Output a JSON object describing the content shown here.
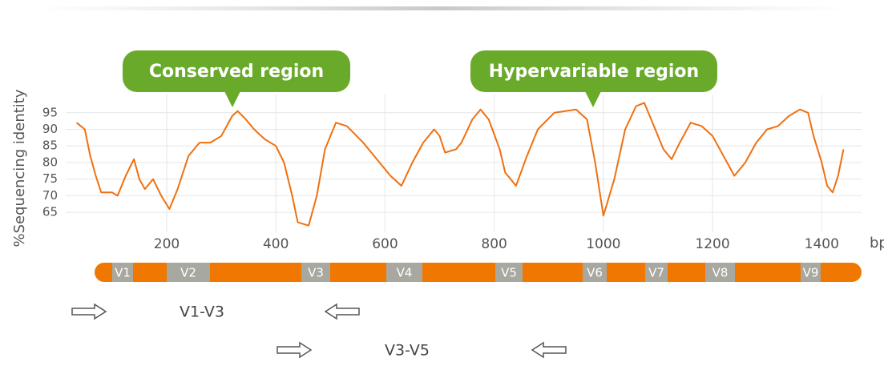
{
  "chart_data": {
    "type": "line",
    "ylabel": "%Sequencing identity",
    "xlabel": "bp",
    "annotations": [
      "Conserved region",
      "Hypervariable region"
    ],
    "x": [
      35,
      50,
      60,
      70,
      80,
      100,
      110,
      125,
      140,
      150,
      160,
      175,
      190,
      205,
      220,
      240,
      260,
      280,
      300,
      320,
      330,
      345,
      360,
      380,
      400,
      415,
      430,
      440,
      460,
      475,
      490,
      510,
      530,
      560,
      590,
      610,
      630,
      650,
      670,
      690,
      700,
      710,
      730,
      740,
      760,
      775,
      790,
      810,
      820,
      840,
      860,
      880,
      910,
      950,
      970,
      985,
      1000,
      1020,
      1040,
      1060,
      1075,
      1090,
      1110,
      1125,
      1140,
      1160,
      1180,
      1200,
      1220,
      1240,
      1260,
      1280,
      1300,
      1320,
      1340,
      1360,
      1375,
      1385,
      1400,
      1410,
      1420,
      1430,
      1440
    ],
    "values": [
      92,
      90,
      82,
      76,
      71,
      71,
      70,
      76,
      81,
      75,
      72,
      75,
      70,
      66,
      72,
      82,
      86,
      86,
      88,
      94,
      95.5,
      93,
      90,
      87,
      85,
      80,
      70,
      62,
      61,
      70,
      84,
      92,
      91,
      86,
      80,
      76,
      73,
      80,
      86,
      90,
      88,
      83,
      84,
      86,
      93,
      96,
      93,
      84,
      77,
      73,
      82,
      90,
      95,
      96,
      93,
      80,
      64,
      75,
      90,
      97,
      98,
      92,
      84,
      81,
      86,
      92,
      91,
      88,
      82,
      76,
      80,
      86,
      90,
      91,
      94,
      96,
      95,
      88,
      80,
      73,
      71,
      76,
      84
    ],
    "color": "#f07010",
    "xlim": [
      15,
      1473
    ],
    "ylim": [
      59,
      100.5
    ],
    "xticks": [
      200,
      400,
      600,
      800,
      1000,
      1200,
      1400
    ],
    "yticks": [
      65,
      70,
      75,
      80,
      85,
      90,
      95
    ],
    "grid": true,
    "regions": [
      "V1",
      "V2",
      "V3",
      "V4",
      "V5",
      "V6",
      "V7",
      "V8",
      "V9"
    ],
    "amplicons": [
      "V1-V3",
      "V3-V5"
    ]
  }
}
